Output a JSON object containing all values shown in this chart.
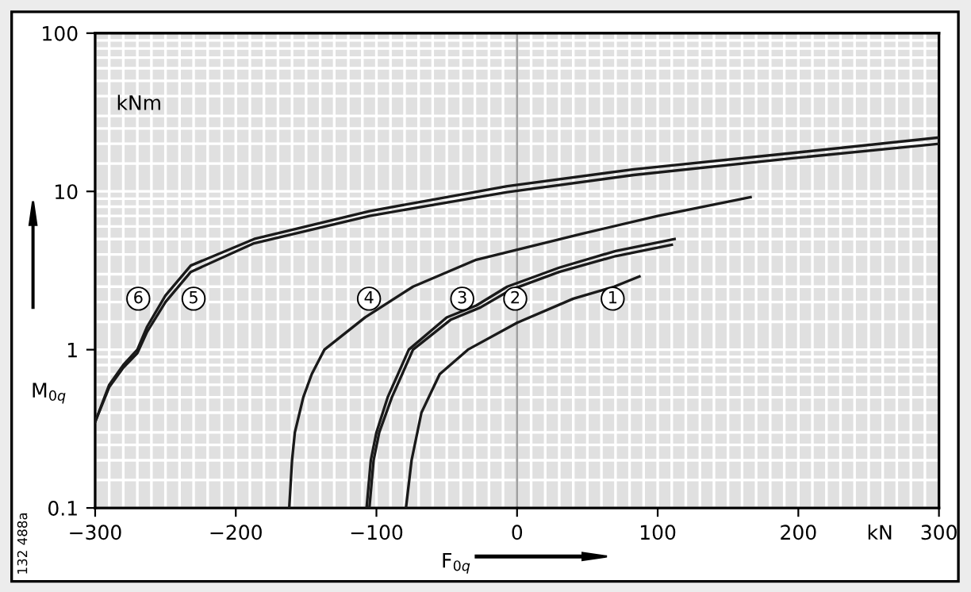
{
  "chart_data": {
    "type": "line",
    "xlabel": "F$_{0q}$",
    "ylabel": "M$_{0q}$",
    "annotations": [
      "kNm",
      "kN",
      "132 488a"
    ],
    "log": "y",
    "xlim": [
      -300,
      300
    ],
    "ylim": [
      0.1,
      100
    ],
    "xticks": [
      {
        "value": -300,
        "label": "−300"
      },
      {
        "value": -200,
        "label": "−200"
      },
      {
        "value": -100,
        "label": "−100"
      },
      0,
      100,
      200,
      300
    ],
    "yticks": [
      0.1,
      1,
      10,
      100
    ],
    "grid": true,
    "marker": "none",
    "line_style": "solid",
    "ref_lines": [
      {
        "axis": "x",
        "value": 0,
        "color": "#a0a0a0"
      }
    ],
    "series": [
      {
        "name": "1",
        "color": "#1a1a1a",
        "x": [
          -79,
          -75,
          -68,
          -55,
          -35,
          0,
          40,
          69,
          87
        ],
        "values": [
          0.1,
          0.2,
          0.4,
          0.7,
          1.0,
          1.48,
          2.1,
          2.5,
          2.9
        ]
      },
      {
        "name": "2",
        "color": "#1a1a1a",
        "x": [
          -105,
          -102,
          -98,
          -89,
          -74,
          -47,
          -26,
          -4,
          30,
          70,
          110
        ],
        "values": [
          0.1,
          0.2,
          0.3,
          0.5,
          1.0,
          1.55,
          1.85,
          2.4,
          3.1,
          3.9,
          4.6
        ]
      },
      {
        "name": "3",
        "color": "#1a1a1a",
        "x": [
          -107,
          -104,
          -100,
          -92,
          -77,
          -50,
          -29,
          -7,
          30,
          70,
          112
        ],
        "values": [
          0.1,
          0.2,
          0.3,
          0.5,
          1.0,
          1.6,
          1.9,
          2.5,
          3.3,
          4.2,
          5.0
        ]
      },
      {
        "name": "4",
        "color": "#1a1a1a",
        "x": [
          -162,
          -160,
          -158,
          -152,
          -146,
          -137,
          -108,
          -74,
          -29,
          46,
          100,
          166
        ],
        "values": [
          0.1,
          0.2,
          0.3,
          0.5,
          0.7,
          1.0,
          1.6,
          2.5,
          3.7,
          5.4,
          7.0,
          9.2
        ]
      },
      {
        "name": "5",
        "color": "#1a1a1a",
        "x": [
          -300,
          -290,
          -280,
          -270,
          -263,
          -250,
          -232,
          -187,
          -105,
          -7,
          83,
          196,
          300
        ],
        "values": [
          0.35,
          0.58,
          0.77,
          0.95,
          1.3,
          2.0,
          3.1,
          4.7,
          7.0,
          9.9,
          12.7,
          16.2,
          20.0
        ]
      },
      {
        "name": "6",
        "color": "#1a1a1a",
        "x": [
          -300,
          -290,
          -280,
          -270,
          -263,
          -250,
          -232,
          -187,
          -105,
          -7,
          83,
          196,
          300
        ],
        "values": [
          0.35,
          0.6,
          0.8,
          1.0,
          1.4,
          2.2,
          3.4,
          5.0,
          7.5,
          10.8,
          13.8,
          17.5,
          21.9
        ]
      }
    ]
  }
}
